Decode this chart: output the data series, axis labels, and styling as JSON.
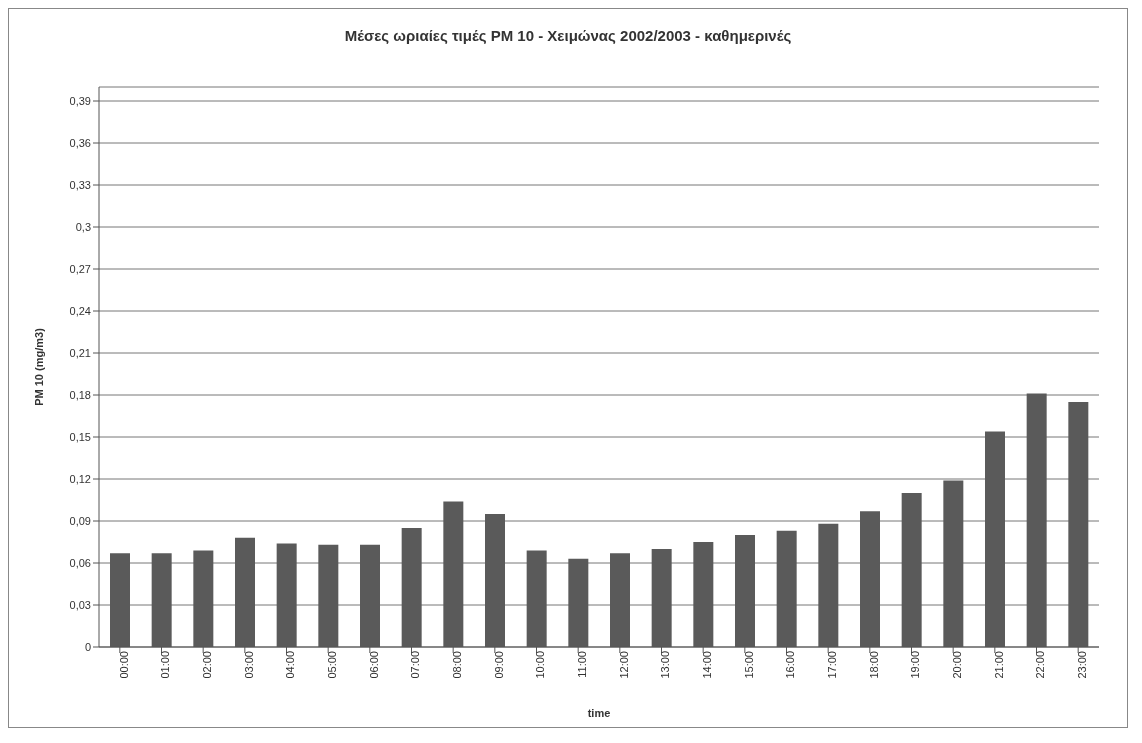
{
  "chart_data": {
    "type": "bar",
    "title": "Μέσες ωριαίες τιμές PM 10 - Χειμώνας 2002/2003 - καθημερινές",
    "xlabel": "time",
    "ylabel": "PM 10 (mg/m3)",
    "categories": [
      "00:00",
      "01:00",
      "02:00",
      "03:00",
      "04:00",
      "05:00",
      "06:00",
      "07:00",
      "08:00",
      "09:00",
      "10:00",
      "11:00",
      "12:00",
      "13:00",
      "14:00",
      "15:00",
      "16:00",
      "17:00",
      "18:00",
      "19:00",
      "20:00",
      "21:00",
      "22:00",
      "23:00"
    ],
    "values": [
      0.067,
      0.067,
      0.069,
      0.078,
      0.074,
      0.073,
      0.073,
      0.085,
      0.104,
      0.095,
      0.069,
      0.063,
      0.067,
      0.07,
      0.075,
      0.08,
      0.083,
      0.088,
      0.097,
      0.11,
      0.119,
      0.154,
      0.181,
      0.175
    ],
    "color": "#5a5a5a",
    "ylim": [
      0,
      0.4
    ],
    "yticks": [
      0,
      {
        "value": 0.03,
        "label": "0,03"
      },
      {
        "value": 0.06,
        "label": "0,06"
      },
      {
        "value": 0.09,
        "label": "0,09"
      },
      {
        "value": 0.12,
        "label": "0,12"
      },
      {
        "value": 0.15,
        "label": "0,15"
      },
      {
        "value": 0.18,
        "label": "0,18"
      },
      {
        "value": 0.21,
        "label": "0,21"
      },
      {
        "value": 0.24,
        "label": "0,24"
      },
      {
        "value": 0.27,
        "label": "0,27"
      },
      {
        "value": 0.3,
        "label": "0,3"
      },
      {
        "value": 0.33,
        "label": "0,33"
      },
      {
        "value": 0.36,
        "label": "0,36"
      },
      {
        "value": 0.39,
        "label": "0,39"
      }
    ],
    "grid": "y"
  }
}
